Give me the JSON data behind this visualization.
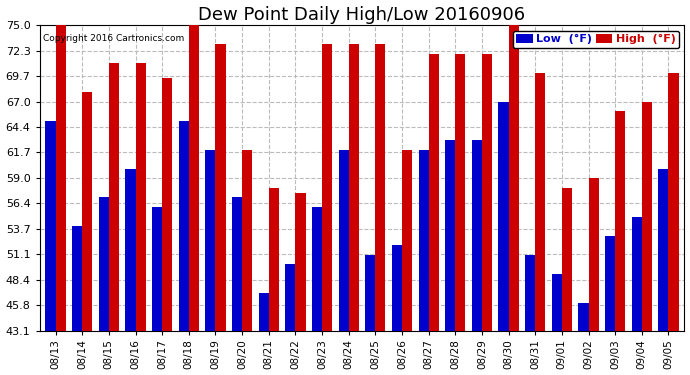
{
  "title": "Dew Point Daily High/Low 20160906",
  "copyright": "Copyright 2016 Cartronics.com",
  "dates": [
    "08/13",
    "08/14",
    "08/15",
    "08/16",
    "08/17",
    "08/18",
    "08/19",
    "08/20",
    "08/21",
    "08/22",
    "08/23",
    "08/24",
    "08/25",
    "08/26",
    "08/27",
    "08/28",
    "08/29",
    "08/30",
    "08/31",
    "09/01",
    "09/02",
    "09/03",
    "09/04",
    "09/05"
  ],
  "low": [
    65.0,
    54.0,
    57.0,
    60.0,
    56.0,
    65.0,
    62.0,
    57.0,
    47.0,
    50.0,
    56.0,
    62.0,
    51.0,
    52.0,
    62.0,
    63.0,
    63.0,
    67.0,
    51.0,
    49.0,
    46.0,
    53.0,
    55.0,
    60.0
  ],
  "high": [
    75.0,
    68.0,
    71.0,
    71.0,
    69.5,
    76.0,
    73.0,
    62.0,
    58.0,
    57.5,
    73.0,
    73.0,
    73.0,
    62.0,
    72.0,
    72.0,
    72.0,
    75.0,
    70.0,
    58.0,
    59.0,
    66.0,
    67.0,
    70.0
  ],
  "ylim_min": 43.1,
  "ylim_max": 75.0,
  "yticks": [
    43.1,
    45.8,
    48.4,
    51.1,
    53.7,
    56.4,
    59.0,
    61.7,
    64.4,
    67.0,
    69.7,
    72.3,
    75.0
  ],
  "low_color": "#0000cc",
  "high_color": "#cc0000",
  "bg_color": "#ffffff",
  "grid_color": "#bbbbbb",
  "bar_width": 0.38,
  "title_fontsize": 13,
  "legend_low_label": "Low  (°F)",
  "legend_high_label": "High  (°F)"
}
